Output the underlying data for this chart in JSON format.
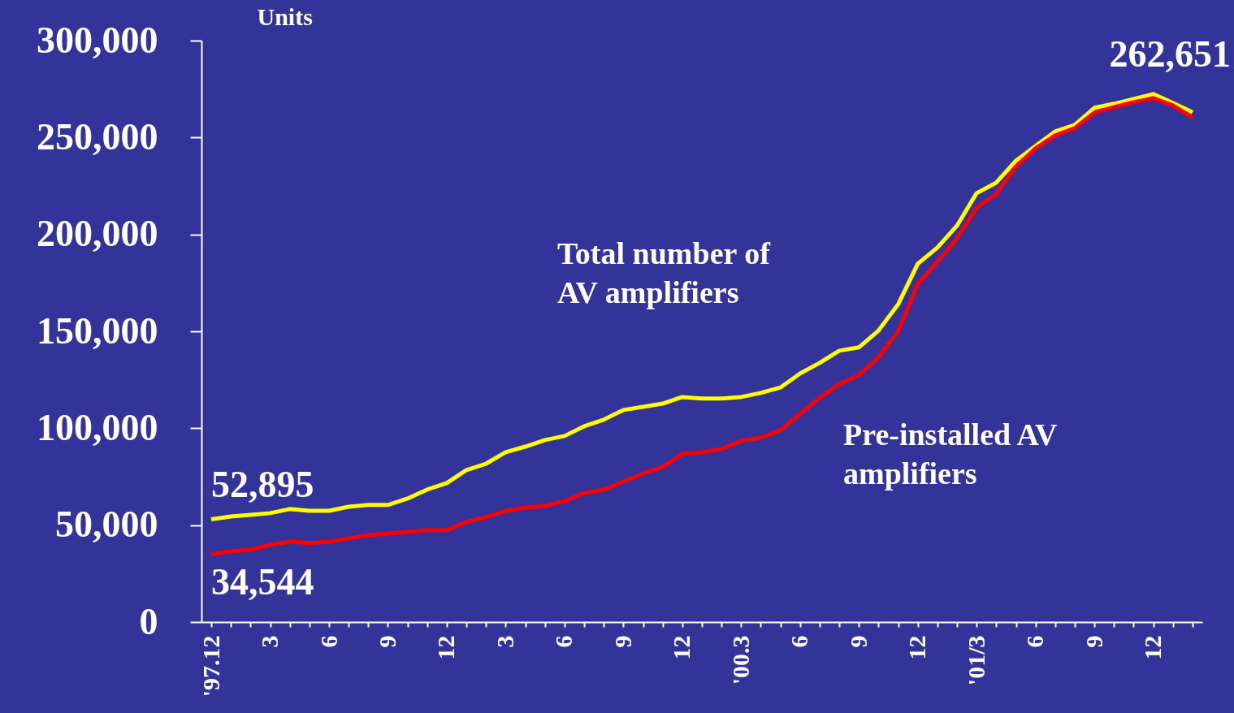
{
  "chart_data": {
    "type": "line",
    "ylabel": "Units",
    "categories": [
      "'97.12",
      null,
      null,
      "3",
      null,
      null,
      "6",
      null,
      null,
      "9",
      null,
      null,
      "12",
      null,
      null,
      "3",
      null,
      null,
      "6",
      null,
      null,
      "9",
      null,
      null,
      "12",
      null,
      null,
      "'00.3",
      null,
      null,
      "6",
      null,
      null,
      "9",
      null,
      null,
      "12",
      null,
      null,
      "'01/3",
      null,
      null,
      "6",
      null,
      null,
      "9",
      null,
      null,
      "12",
      null,
      null
    ],
    "series": [
      {
        "name": "Total number of AV amplifiers",
        "color": "#ffff00",
        "values": [
          53000,
          54500,
          55300,
          56200,
          58300,
          57400,
          57400,
          59500,
          60400,
          60400,
          63700,
          68300,
          71700,
          78400,
          81700,
          87600,
          90500,
          93900,
          96000,
          101000,
          104400,
          109400,
          111000,
          112700,
          116100,
          115300,
          115300,
          116100,
          118200,
          121000,
          128200,
          133700,
          140000,
          141700,
          150400,
          163900,
          184800,
          193200,
          204500,
          221300,
          226700,
          238000,
          245600,
          253100,
          256500,
          265300,
          267400,
          269900,
          272400,
          267800,
          263000
        ]
      },
      {
        "name": "Pre-installed AV amplifiers",
        "color": "#ff0000",
        "values": [
          35000,
          36500,
          37300,
          39800,
          41500,
          40700,
          41500,
          43200,
          44800,
          45700,
          46500,
          47400,
          47400,
          51600,
          54100,
          57400,
          59100,
          59900,
          62400,
          66600,
          68300,
          72500,
          76700,
          80000,
          86800,
          87600,
          89300,
          93500,
          95100,
          98900,
          107300,
          115700,
          122800,
          127400,
          136600,
          150000,
          174300,
          186000,
          198000,
          213700,
          221000,
          235000,
          244300,
          251000,
          254800,
          262800,
          265700,
          268200,
          270300,
          266500,
          260300
        ]
      }
    ],
    "ylim": [
      0,
      300000
    ],
    "yticks": [
      0,
      {
        "value": 50000,
        "label": "50,000"
      },
      {
        "value": 100000,
        "label": "100,000"
      },
      {
        "value": 150000,
        "label": "150,000"
      },
      {
        "value": 200000,
        "label": "200,000"
      },
      {
        "value": 250000,
        "label": "250,000"
      },
      {
        "value": 300000,
        "label": "300,000"
      }
    ],
    "annotations": [
      {
        "text": "52,895",
        "x": "'97.12",
        "y": 52895
      },
      {
        "text": "34,544",
        "x": "'97.12",
        "y": 34544
      },
      "262,651"
    ]
  }
}
